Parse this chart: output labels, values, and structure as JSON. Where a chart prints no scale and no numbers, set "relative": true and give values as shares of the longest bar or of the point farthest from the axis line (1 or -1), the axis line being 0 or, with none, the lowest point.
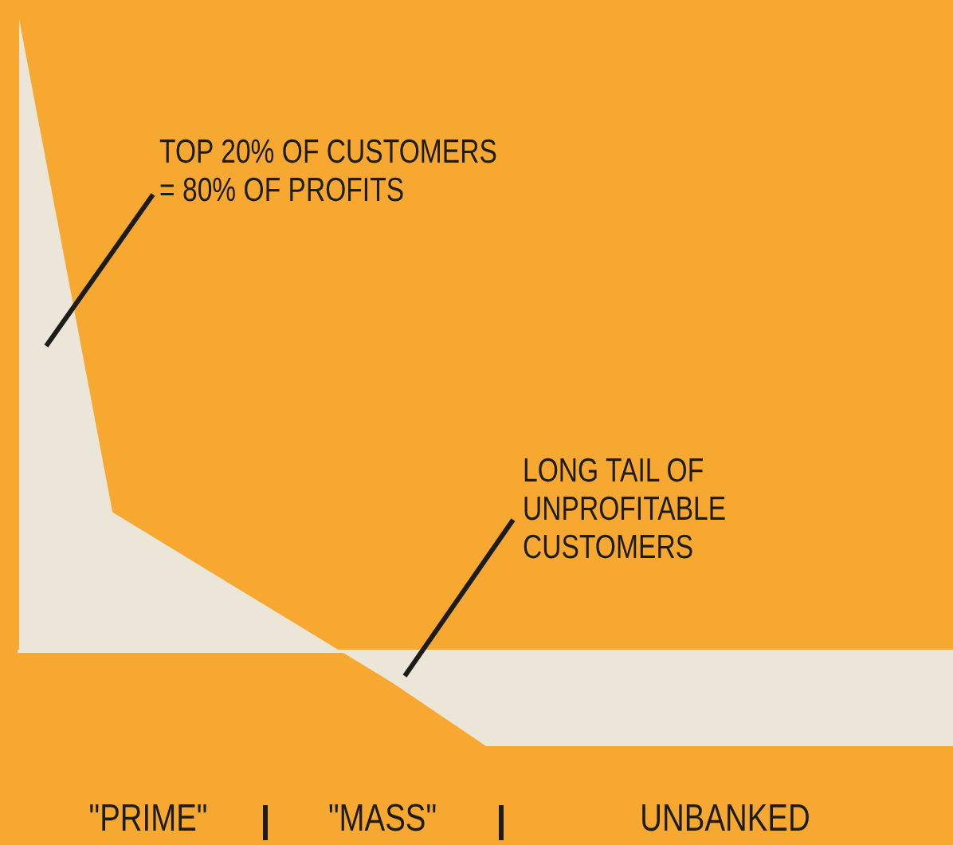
{
  "chart_data": {
    "type": "area",
    "relative": true,
    "categories": [
      null,
      null,
      null,
      null,
      null,
      null,
      null,
      null,
      null,
      null,
      null
    ],
    "series": [
      {
        "color": "#ece6d8",
        "values": [
          1,
          0.22,
          0.13,
          0.04,
          -0.05,
          -0.15,
          -0.15,
          -0.15,
          -0.15,
          -0.15,
          -0.15
        ]
      }
    ],
    "annotations": [
      "TOP 20% OF CUSTOMERS\n= 80% OF PROFITS",
      "LONG TAIL OF\nUNPROFITABLE\nCUSTOMERS",
      "\"PRIME\"",
      "\"MASS\"",
      "UNBANKED"
    ]
  }
}
